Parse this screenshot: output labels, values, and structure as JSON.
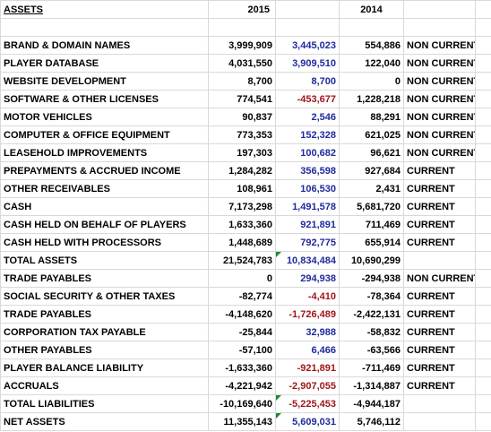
{
  "table": {
    "header": [
      "ASSETS",
      "2015",
      "2014"
    ],
    "rows": [
      [
        "BRAND & DOMAIN NAMES",
        "3,999,909",
        "3,445,023",
        "554,886",
        "NON CURRENT"
      ],
      [
        "PLAYER DATABASE",
        "4,031,550",
        "3,909,510",
        "122,040",
        "NON CURRENT"
      ],
      [
        "WEBSITE DEVELOPMENT",
        "8,700",
        "8,700",
        "0",
        "NON CURRENT"
      ],
      [
        "SOFTWARE & OTHER LICENSES",
        "774,541",
        "-453,677",
        "1,228,218",
        "NON CURRENT"
      ],
      [
        "MOTOR VEHICLES",
        "90,837",
        "2,546",
        "88,291",
        "NON CURRENT"
      ],
      [
        "COMPUTER & OFFICE EQUIPMENT",
        "773,353",
        "152,328",
        "621,025",
        "NON CURRENT"
      ],
      [
        "LEASEHOLD IMPROVEMENTS",
        "197,303",
        "100,682",
        "96,621",
        "NON CURRENT"
      ],
      [
        "PREPAYMENTS & ACCRUED INCOME",
        "1,284,282",
        "356,598",
        "927,684",
        "CURRENT"
      ],
      [
        "OTHER RECEIVABLES",
        "108,961",
        "106,530",
        "2,431",
        "CURRENT"
      ],
      [
        "CASH",
        "7,173,298",
        "1,491,578",
        "5,681,720",
        "CURRENT"
      ],
      [
        "CASH HELD ON BEHALF OF PLAYERS",
        "1,633,360",
        "921,891",
        "711,469",
        "CURRENT"
      ],
      [
        "CASH HELD WITH PROCESSORS",
        "1,448,689",
        "792,775",
        "655,914",
        "CURRENT"
      ],
      [
        "TOTAL ASSETS",
        "21,524,783",
        "10,834,484",
        "10,690,299",
        null
      ],
      [
        "TRADE PAYABLES",
        "0",
        "294,938",
        "-294,938",
        "NON CURRENT"
      ],
      [
        "SOCIAL SECURITY & OTHER TAXES",
        "-82,774",
        "-4,410",
        "-78,364",
        "CURRENT"
      ],
      [
        "TRADE PAYABLES",
        "-4,148,620",
        "-1,726,489",
        "-2,422,131",
        "CURRENT"
      ],
      [
        "CORPORATION TAX PAYABLE",
        "-25,844",
        "32,988",
        "-58,832",
        "CURRENT"
      ],
      [
        "OTHER PAYABLES",
        "-57,100",
        "6,466",
        "-63,566",
        "CURRENT"
      ],
      [
        "PLAYER BALANCE LIABILITY",
        "-1,633,360",
        "-921,891",
        "-711,469",
        "CURRENT"
      ],
      [
        "ACCRUALS",
        "-4,221,942",
        "-2,907,055",
        "-1,314,887",
        "CURRENT"
      ],
      [
        "TOTAL LIABILITIES",
        "-10,169,640",
        "-5,225,453",
        "-4,944,187",
        null
      ],
      [
        "NET ASSETS",
        "11,355,143",
        "5,609,031",
        "5,746,112",
        null
      ]
    ]
  }
}
